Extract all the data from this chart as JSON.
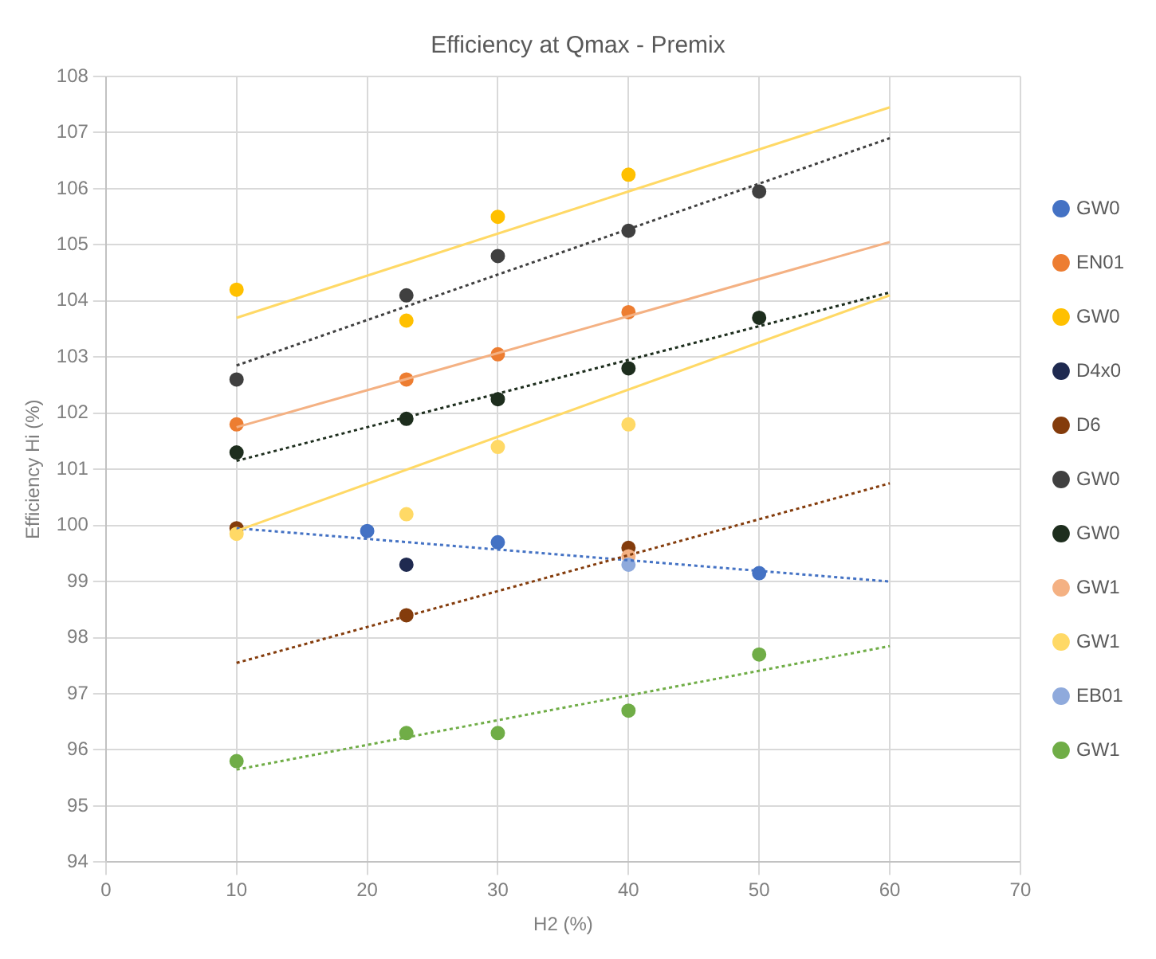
{
  "chart_data": {
    "type": "scatter",
    "title": "Efficiency at Qmax - Premix",
    "xlabel": "H2 (%)",
    "ylabel": "Efficiency Hi (%)",
    "xlim": [
      0,
      70
    ],
    "xticks": [
      0,
      10,
      20,
      30,
      40,
      50,
      60,
      70
    ],
    "ylim": [
      94,
      108
    ],
    "yticks": [
      94,
      95,
      96,
      97,
      98,
      99,
      100,
      101,
      102,
      103,
      104,
      105,
      106,
      107,
      108
    ],
    "grid": true,
    "legend": "right",
    "marker": "circle",
    "series": [
      {
        "name": "GW0",
        "color": "#4472c4",
        "x": [
          20,
          30,
          50
        ],
        "values": [
          99.9,
          99.7,
          99.15
        ]
      },
      {
        "name": "EN01",
        "color": "#ed7d31",
        "x": [
          10,
          23,
          30,
          40
        ],
        "values": [
          101.8,
          102.6,
          103.05,
          103.8
        ]
      },
      {
        "name": "GW0",
        "color": "#ffc000",
        "x": [
          10,
          23,
          30,
          40
        ],
        "values": [
          104.2,
          103.65,
          105.5,
          106.25
        ]
      },
      {
        "name": "D4x0",
        "color": "#1f2a50",
        "x": [
          23
        ],
        "values": [
          99.3
        ]
      },
      {
        "name": "D6",
        "color": "#843c0c",
        "x": [
          10,
          23,
          40
        ],
        "values": [
          99.95,
          98.4,
          99.6
        ]
      },
      {
        "name": "GW0",
        "color": "#404040",
        "x": [
          10,
          23,
          30,
          40,
          50
        ],
        "values": [
          102.6,
          104.1,
          104.8,
          105.25,
          105.95
        ]
      },
      {
        "name": "GW0",
        "color": "#1e2e1e",
        "x": [
          10,
          23,
          30,
          40,
          50
        ],
        "values": [
          101.3,
          101.9,
          102.25,
          102.8,
          103.7
        ]
      },
      {
        "name": "GW1",
        "color": "#f4b183",
        "x": [
          40
        ],
        "values": [
          99.45
        ]
      },
      {
        "name": "GW1",
        "color": "#ffd966",
        "x": [
          10,
          23,
          30,
          40
        ],
        "values": [
          99.85,
          100.2,
          101.4,
          101.8
        ]
      },
      {
        "name": "EB01",
        "color": "#8faadc",
        "x": [
          40
        ],
        "values": [
          99.3
        ]
      },
      {
        "name": "GW1",
        "color": "#70ad47",
        "x": [
          10,
          23,
          30,
          40,
          50
        ],
        "values": [
          95.8,
          96.3,
          96.3,
          96.7,
          97.7
        ]
      },
      {
        "type": "line",
        "marker": "none",
        "color": "#4472c4",
        "line_style": "dotted",
        "x": [
          10,
          60
        ],
        "values": [
          99.95,
          99.0
        ]
      },
      {
        "type": "line",
        "marker": "none",
        "color": "#f4b183",
        "line_style": "solid",
        "x": [
          10,
          60
        ],
        "values": [
          101.75,
          105.05
        ]
      },
      {
        "type": "line",
        "marker": "none",
        "color": "#ffd966",
        "line_style": "solid",
        "x": [
          10,
          60
        ],
        "values": [
          103.7,
          107.45
        ]
      },
      {
        "type": "line",
        "marker": "none",
        "color": "#404040",
        "line_style": "dotted",
        "x": [
          10,
          60
        ],
        "values": [
          102.85,
          106.9
        ]
      },
      {
        "type": "line",
        "marker": "none",
        "color": "#1e2e1e",
        "line_style": "dotted",
        "x": [
          10,
          60
        ],
        "values": [
          101.15,
          104.15
        ]
      },
      {
        "type": "line",
        "marker": "none",
        "color": "#ffd966",
        "line_style": "solid",
        "x": [
          10,
          60
        ],
        "values": [
          99.9,
          104.1
        ]
      },
      {
        "type": "line",
        "marker": "none",
        "color": "#843c0c",
        "line_style": "dotted",
        "x": [
          10,
          60
        ],
        "values": [
          97.55,
          100.75
        ]
      },
      {
        "type": "line",
        "marker": "none",
        "color": "#70ad47",
        "line_style": "dotted",
        "x": [
          10,
          60
        ],
        "values": [
          95.65,
          97.85
        ]
      }
    ]
  }
}
